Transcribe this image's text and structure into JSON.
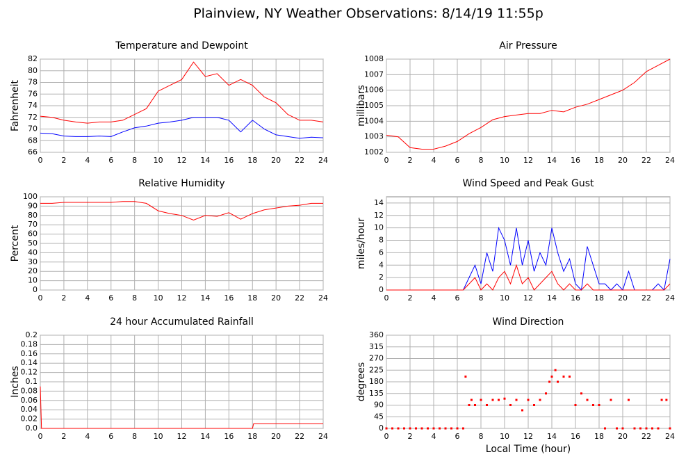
{
  "title": "Plainview, NY Weather Observations: 8/14/19 11:55p",
  "chart_data": [
    {
      "type": "line",
      "title": "Temperature and Dewpoint",
      "ylabel": "Fahrenheit",
      "x": [
        0,
        1,
        2,
        3,
        4,
        5,
        6,
        7,
        8,
        9,
        10,
        11,
        12,
        13,
        14,
        15,
        16,
        17,
        18,
        19,
        20,
        21,
        22,
        23,
        24
      ],
      "series": [
        {
          "color": "#ff0000",
          "values": [
            72.2,
            72,
            71.5,
            71.2,
            71,
            71.2,
            71.2,
            71.5,
            72.5,
            73.5,
            76.5,
            77.5,
            78.5,
            81.5,
            79,
            79.5,
            77.5,
            78.5,
            77.5,
            75.5,
            74.5,
            72.5,
            71.5,
            71.5,
            71.2
          ]
        },
        {
          "color": "#0000ff",
          "values": [
            69.3,
            69.2,
            68.8,
            68.7,
            68.7,
            68.8,
            68.7,
            69.5,
            70.2,
            70.5,
            71,
            71.2,
            71.5,
            72,
            72,
            72,
            71.5,
            69.5,
            71.5,
            70,
            69,
            68.7,
            68.4,
            68.6,
            68.5
          ]
        }
      ],
      "xlim": [
        0,
        24
      ],
      "xticks": [
        0,
        2,
        4,
        6,
        8,
        10,
        12,
        14,
        16,
        18,
        20,
        22,
        24
      ],
      "ylim": [
        66,
        82
      ],
      "yticks": [
        66,
        68,
        70,
        72,
        74,
        76,
        78,
        80,
        82
      ],
      "grid": true
    },
    {
      "type": "line",
      "title": "Air Pressure",
      "ylabel": "millibars",
      "x": [
        0,
        1,
        2,
        3,
        4,
        5,
        6,
        7,
        8,
        9,
        10,
        11,
        12,
        13,
        14,
        15,
        16,
        17,
        18,
        19,
        20,
        21,
        22,
        23,
        24
      ],
      "series": [
        {
          "color": "#ff0000",
          "values": [
            1003.1,
            1003,
            1002.3,
            1002.2,
            1002.2,
            1002.4,
            1002.7,
            1003.2,
            1003.6,
            1004.1,
            1004.3,
            1004.4,
            1004.5,
            1004.5,
            1004.7,
            1004.6,
            1004.9,
            1005.1,
            1005.4,
            1005.7,
            1006,
            1006.5,
            1007.2,
            1007.6,
            1008
          ]
        }
      ],
      "xlim": [
        0,
        24
      ],
      "xticks": [
        0,
        2,
        4,
        6,
        8,
        10,
        12,
        14,
        16,
        18,
        20,
        22,
        24
      ],
      "ylim": [
        1002,
        1008
      ],
      "yticks": [
        1002,
        1003,
        1004,
        1005,
        1006,
        1007,
        1008
      ],
      "grid": true
    },
    {
      "type": "line",
      "title": "Relative Humidity",
      "ylabel": "Percent",
      "x": [
        0,
        1,
        2,
        3,
        4,
        5,
        6,
        7,
        8,
        9,
        10,
        11,
        12,
        13,
        14,
        15,
        16,
        17,
        18,
        19,
        20,
        21,
        22,
        23,
        24
      ],
      "series": [
        {
          "color": "#ff0000",
          "values": [
            93,
            93,
            94,
            94,
            94,
            94,
            94,
            95,
            95,
            93,
            85,
            82,
            80,
            75,
            80,
            79,
            83,
            76,
            82,
            86,
            88,
            90,
            91,
            93,
            93
          ]
        }
      ],
      "xlim": [
        0,
        24
      ],
      "xticks": [
        0,
        2,
        4,
        6,
        8,
        10,
        12,
        14,
        16,
        18,
        20,
        22,
        24
      ],
      "ylim": [
        0,
        100
      ],
      "yticks": [
        0,
        10,
        20,
        30,
        40,
        50,
        60,
        70,
        80,
        90,
        100
      ],
      "grid": true
    },
    {
      "type": "line",
      "title": "Wind Speed and Peak Gust",
      "ylabel": "miles/hour",
      "x": [
        0,
        0.5,
        1,
        1.5,
        2,
        2.5,
        3,
        3.5,
        4,
        4.5,
        5,
        5.5,
        6,
        6.5,
        7,
        7.5,
        8,
        8.5,
        9,
        9.5,
        10,
        10.5,
        11,
        11.5,
        12,
        12.5,
        13,
        13.5,
        14,
        14.5,
        15,
        15.5,
        16,
        16.5,
        17,
        17.5,
        18,
        18.5,
        19,
        19.5,
        20,
        20.5,
        21,
        21.5,
        22,
        22.5,
        23,
        23.5,
        24
      ],
      "series": [
        {
          "color": "#0000ff",
          "values": [
            0,
            0,
            0,
            0,
            0,
            0,
            0,
            0,
            0,
            0,
            0,
            0,
            0,
            0,
            2,
            4,
            1,
            6,
            3,
            10,
            8,
            4,
            10,
            4,
            8,
            3,
            6,
            4,
            10,
            6,
            3,
            5,
            1,
            0,
            7,
            4,
            1,
            1,
            0,
            1,
            0,
            3,
            0,
            0,
            0,
            0,
            1,
            0,
            5
          ]
        },
        {
          "color": "#ff0000",
          "values": [
            0,
            0,
            0,
            0,
            0,
            0,
            0,
            0,
            0,
            0,
            0,
            0,
            0,
            0,
            1,
            2,
            0,
            1,
            0,
            2,
            3,
            1,
            4,
            1,
            2,
            0,
            1,
            2,
            3,
            1,
            0,
            1,
            0,
            0,
            1,
            0,
            0,
            0,
            0,
            0,
            0,
            0,
            0,
            0,
            0,
            0,
            0,
            0,
            1
          ]
        }
      ],
      "xlim": [
        0,
        24
      ],
      "xticks": [
        0,
        2,
        4,
        6,
        8,
        10,
        12,
        14,
        16,
        18,
        20,
        22,
        24
      ],
      "ylim": [
        0,
        15
      ],
      "yticks": [
        0,
        2,
        4,
        6,
        8,
        10,
        12,
        14
      ],
      "grid": true
    },
    {
      "type": "line",
      "title": "24 hour Accumulated Rainfall",
      "ylabel": "Inches",
      "x": [
        0,
        0.1,
        18,
        18.1,
        24
      ],
      "series": [
        {
          "color": "#ff0000",
          "values": [
            0.09,
            0,
            0,
            0.01,
            0.01
          ]
        }
      ],
      "xlim": [
        0,
        24
      ],
      "xticks": [
        0,
        2,
        4,
        6,
        8,
        10,
        12,
        14,
        16,
        18,
        20,
        22,
        24
      ],
      "ylim": [
        0,
        0.2
      ],
      "yticks": [
        {
          "value": 0,
          "label": "0.0"
        },
        0.02,
        0.04,
        0.06,
        0.08,
        0.1,
        0.12,
        0.14,
        0.16,
        0.18,
        0.2
      ],
      "grid": true
    },
    {
      "type": "scatter",
      "title": "Wind Direction",
      "ylabel": "degrees",
      "xlabel": "Local Time (hour)",
      "x": [
        0,
        0.5,
        1,
        1.5,
        2,
        2.5,
        3,
        3.5,
        4,
        4.5,
        5,
        5.5,
        6,
        6.5,
        6.7,
        7,
        7.2,
        7.5,
        8,
        8.5,
        9,
        9.5,
        10,
        10.5,
        11,
        11.5,
        12,
        12.5,
        13,
        13.5,
        13.8,
        14,
        14.3,
        14.5,
        15,
        15.5,
        16,
        16.5,
        17,
        17.5,
        18,
        18.5,
        19,
        19.5,
        20,
        20.5,
        21,
        21.5,
        22,
        22.5,
        23,
        23.3,
        23.7,
        24
      ],
      "series": [
        {
          "color": "#ff0000",
          "values": [
            0,
            0,
            0,
            0,
            0,
            0,
            0,
            0,
            0,
            0,
            0,
            0,
            0,
            0,
            200,
            90,
            110,
            90,
            110,
            90,
            110,
            110,
            115,
            90,
            110,
            70,
            110,
            90,
            110,
            135,
            180,
            200,
            225,
            180,
            200,
            200,
            90,
            135,
            110,
            90,
            90,
            0,
            110,
            0,
            0,
            110,
            0,
            0,
            0,
            0,
            0,
            110,
            110,
            0
          ]
        }
      ],
      "xlim": [
        0,
        24
      ],
      "xticks": [
        0,
        2,
        4,
        6,
        8,
        10,
        12,
        14,
        16,
        18,
        20,
        22,
        24
      ],
      "ylim": [
        0,
        360
      ],
      "yticks": [
        0,
        45,
        90,
        135,
        180,
        225,
        270,
        315,
        360
      ],
      "grid": true
    }
  ]
}
